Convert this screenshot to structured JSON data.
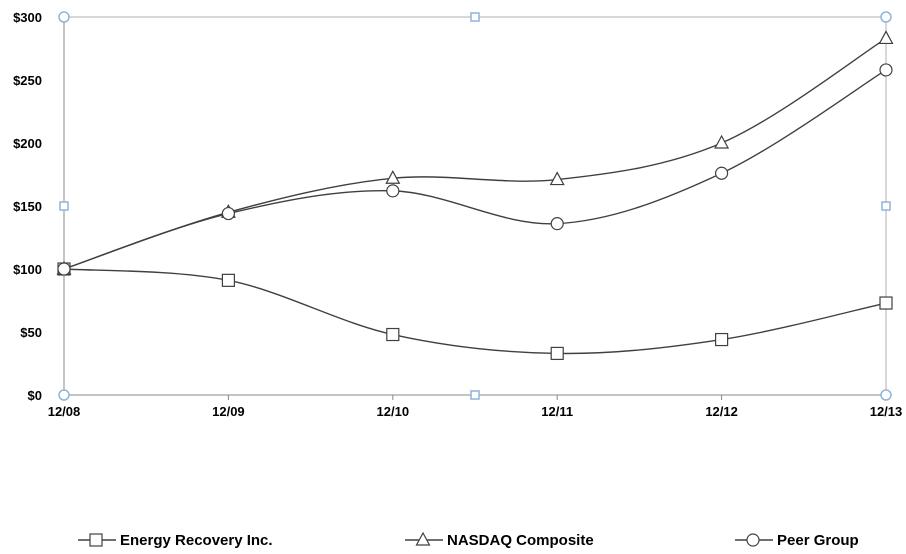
{
  "chart_data": {
    "type": "line",
    "title": "",
    "xlabel": "",
    "ylabel": "",
    "categories": [
      "12/08",
      "12/09",
      "12/10",
      "12/11",
      "12/12",
      "12/13"
    ],
    "ylim": [
      0,
      300
    ],
    "yticks": [
      0,
      50,
      100,
      150,
      200,
      250,
      300
    ],
    "ytick_labels": [
      "$0",
      "$50",
      "$100",
      "$150",
      "$200",
      "$250",
      "$300"
    ],
    "grid": false,
    "legend_position": "bottom",
    "series": [
      {
        "name": "Energy Recovery Inc.",
        "marker": "square",
        "values": [
          100,
          91,
          48,
          33,
          44,
          73
        ]
      },
      {
        "name": "NASDAQ Composite",
        "marker": "triangle",
        "values": [
          100,
          145,
          172,
          171,
          200,
          283
        ]
      },
      {
        "name": "Peer Group",
        "marker": "circle",
        "values": [
          100,
          144,
          162,
          136,
          176,
          258
        ]
      }
    ],
    "line_color": "#404040",
    "selection_handle_color": "#8fb4dc"
  }
}
